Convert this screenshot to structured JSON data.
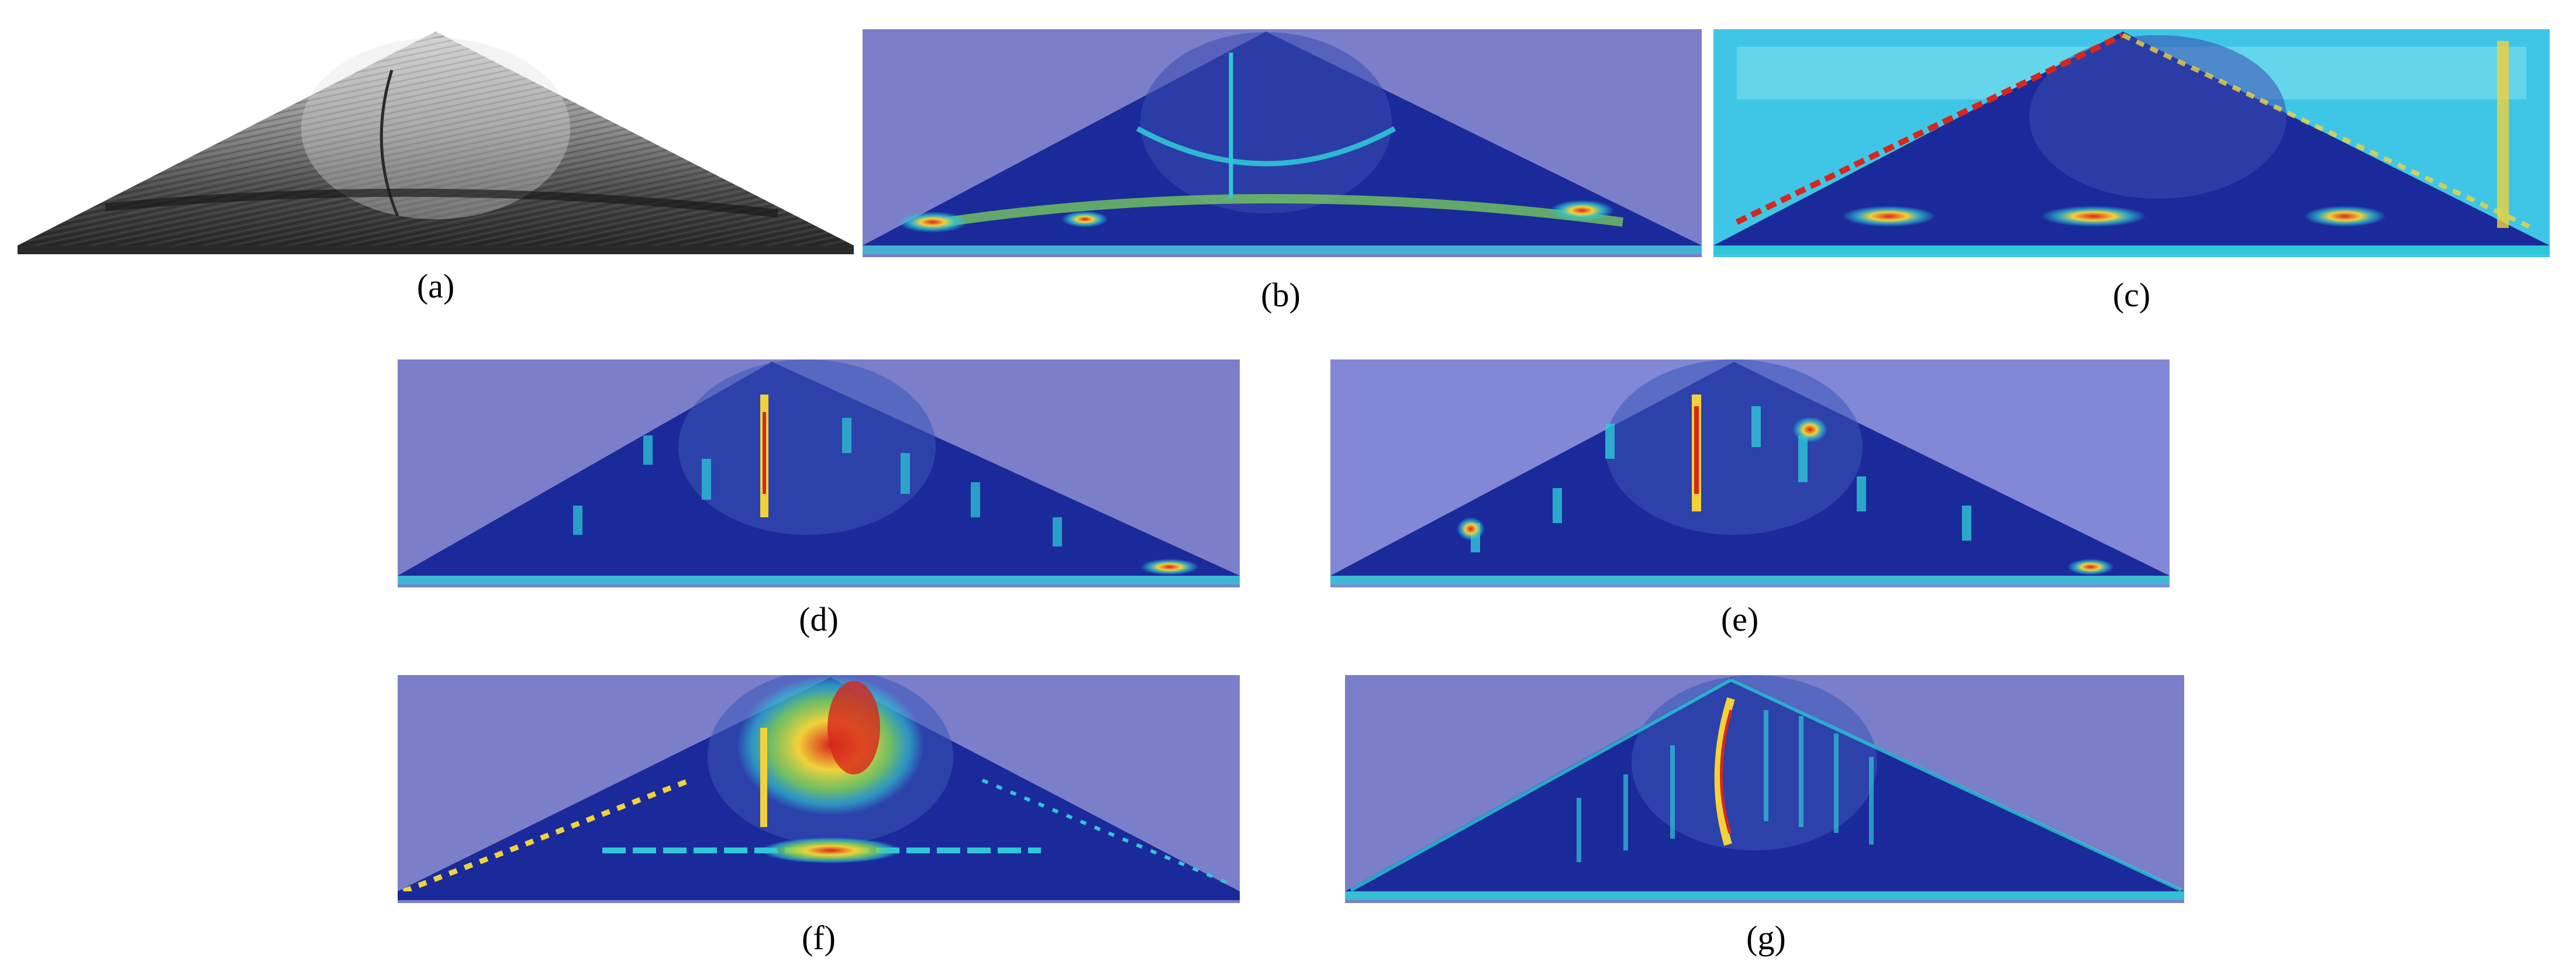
{
  "figure": {
    "panels": [
      {
        "id": "a",
        "caption": "(a)",
        "type": "grayscale"
      },
      {
        "id": "b",
        "caption": "(b)",
        "type": "heatmap"
      },
      {
        "id": "c",
        "caption": "(c)",
        "type": "heatmap"
      },
      {
        "id": "d",
        "caption": "(d)",
        "type": "heatmap"
      },
      {
        "id": "e",
        "caption": "(e)",
        "type": "heatmap"
      },
      {
        "id": "f",
        "caption": "(f)",
        "type": "heatmap"
      },
      {
        "id": "g",
        "caption": "(g)",
        "type": "heatmap"
      }
    ]
  },
  "colors": {
    "overlay_background": "#7b7ec9",
    "overlay_background_alt": "#8287d6",
    "heat_low": "#1b2a9a",
    "heat_mid": "#2ec7d6",
    "heat_green": "#7ad35a",
    "heat_yellow": "#f1d23a",
    "heat_high": "#d8261c",
    "grayscale_dark": "#1a1a1a",
    "grayscale_light": "#bdbdbd"
  }
}
